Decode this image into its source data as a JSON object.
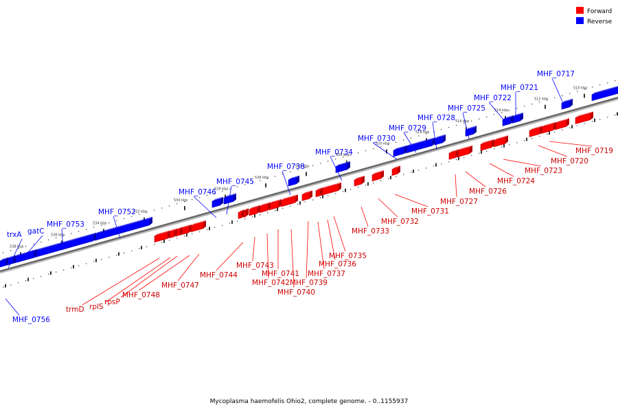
{
  "colors": {
    "forward": "#ff0000",
    "reverse": "#0000ff",
    "forward_edge": "#b80000",
    "reverse_edge": "#0000a8",
    "axis": "#666666"
  },
  "legend": [
    {
      "label": "Forward",
      "color": "#ff0000"
    },
    {
      "label": "Reverse",
      "color": "#0000ff"
    }
  ],
  "caption": "Mycoplasma haemofelis Ohio2, complete genome. - 0..1155937",
  "scale_labels": [
    "510 kbp",
    "512 kbp",
    "514 kbp",
    "516 kbp",
    "518 kbp",
    "520 kbp",
    "522 kbp",
    "524 kbp",
    "526 kbp",
    "528 kbp",
    "530 kbp",
    "532 kbp",
    "534 kbp",
    "536 kbp",
    "538 kbp"
  ],
  "reverse_labels": [
    "MHF_0717",
    "MHF_0721",
    "MHF_0722",
    "MHF_0725",
    "MHF_0728",
    "MHF_0729",
    "MHF_0730",
    "MHF_0734",
    "MHF_0738",
    "MHF_0745",
    "MHF_0746",
    "MHF_0752",
    "MHF_0753",
    "gatC",
    "trxA",
    "MHF_0756"
  ],
  "forward_labels": [
    "MHF_0719",
    "MHF_0720",
    "MHF_0723",
    "MHF_0724",
    "MHF_0726",
    "MHF_0727",
    "MHF_0731",
    "MHF_0732",
    "MHF_0733",
    "MHF_0735",
    "MHF_0736",
    "MHF_0737",
    "MHF_0739",
    "MHF_0740",
    "MHF_0741",
    "MHF_0742",
    "MHF_0743",
    "MHF_0744",
    "MHF_0747",
    "MHF_0748",
    "rpsP",
    "rplS",
    "trmD"
  ]
}
